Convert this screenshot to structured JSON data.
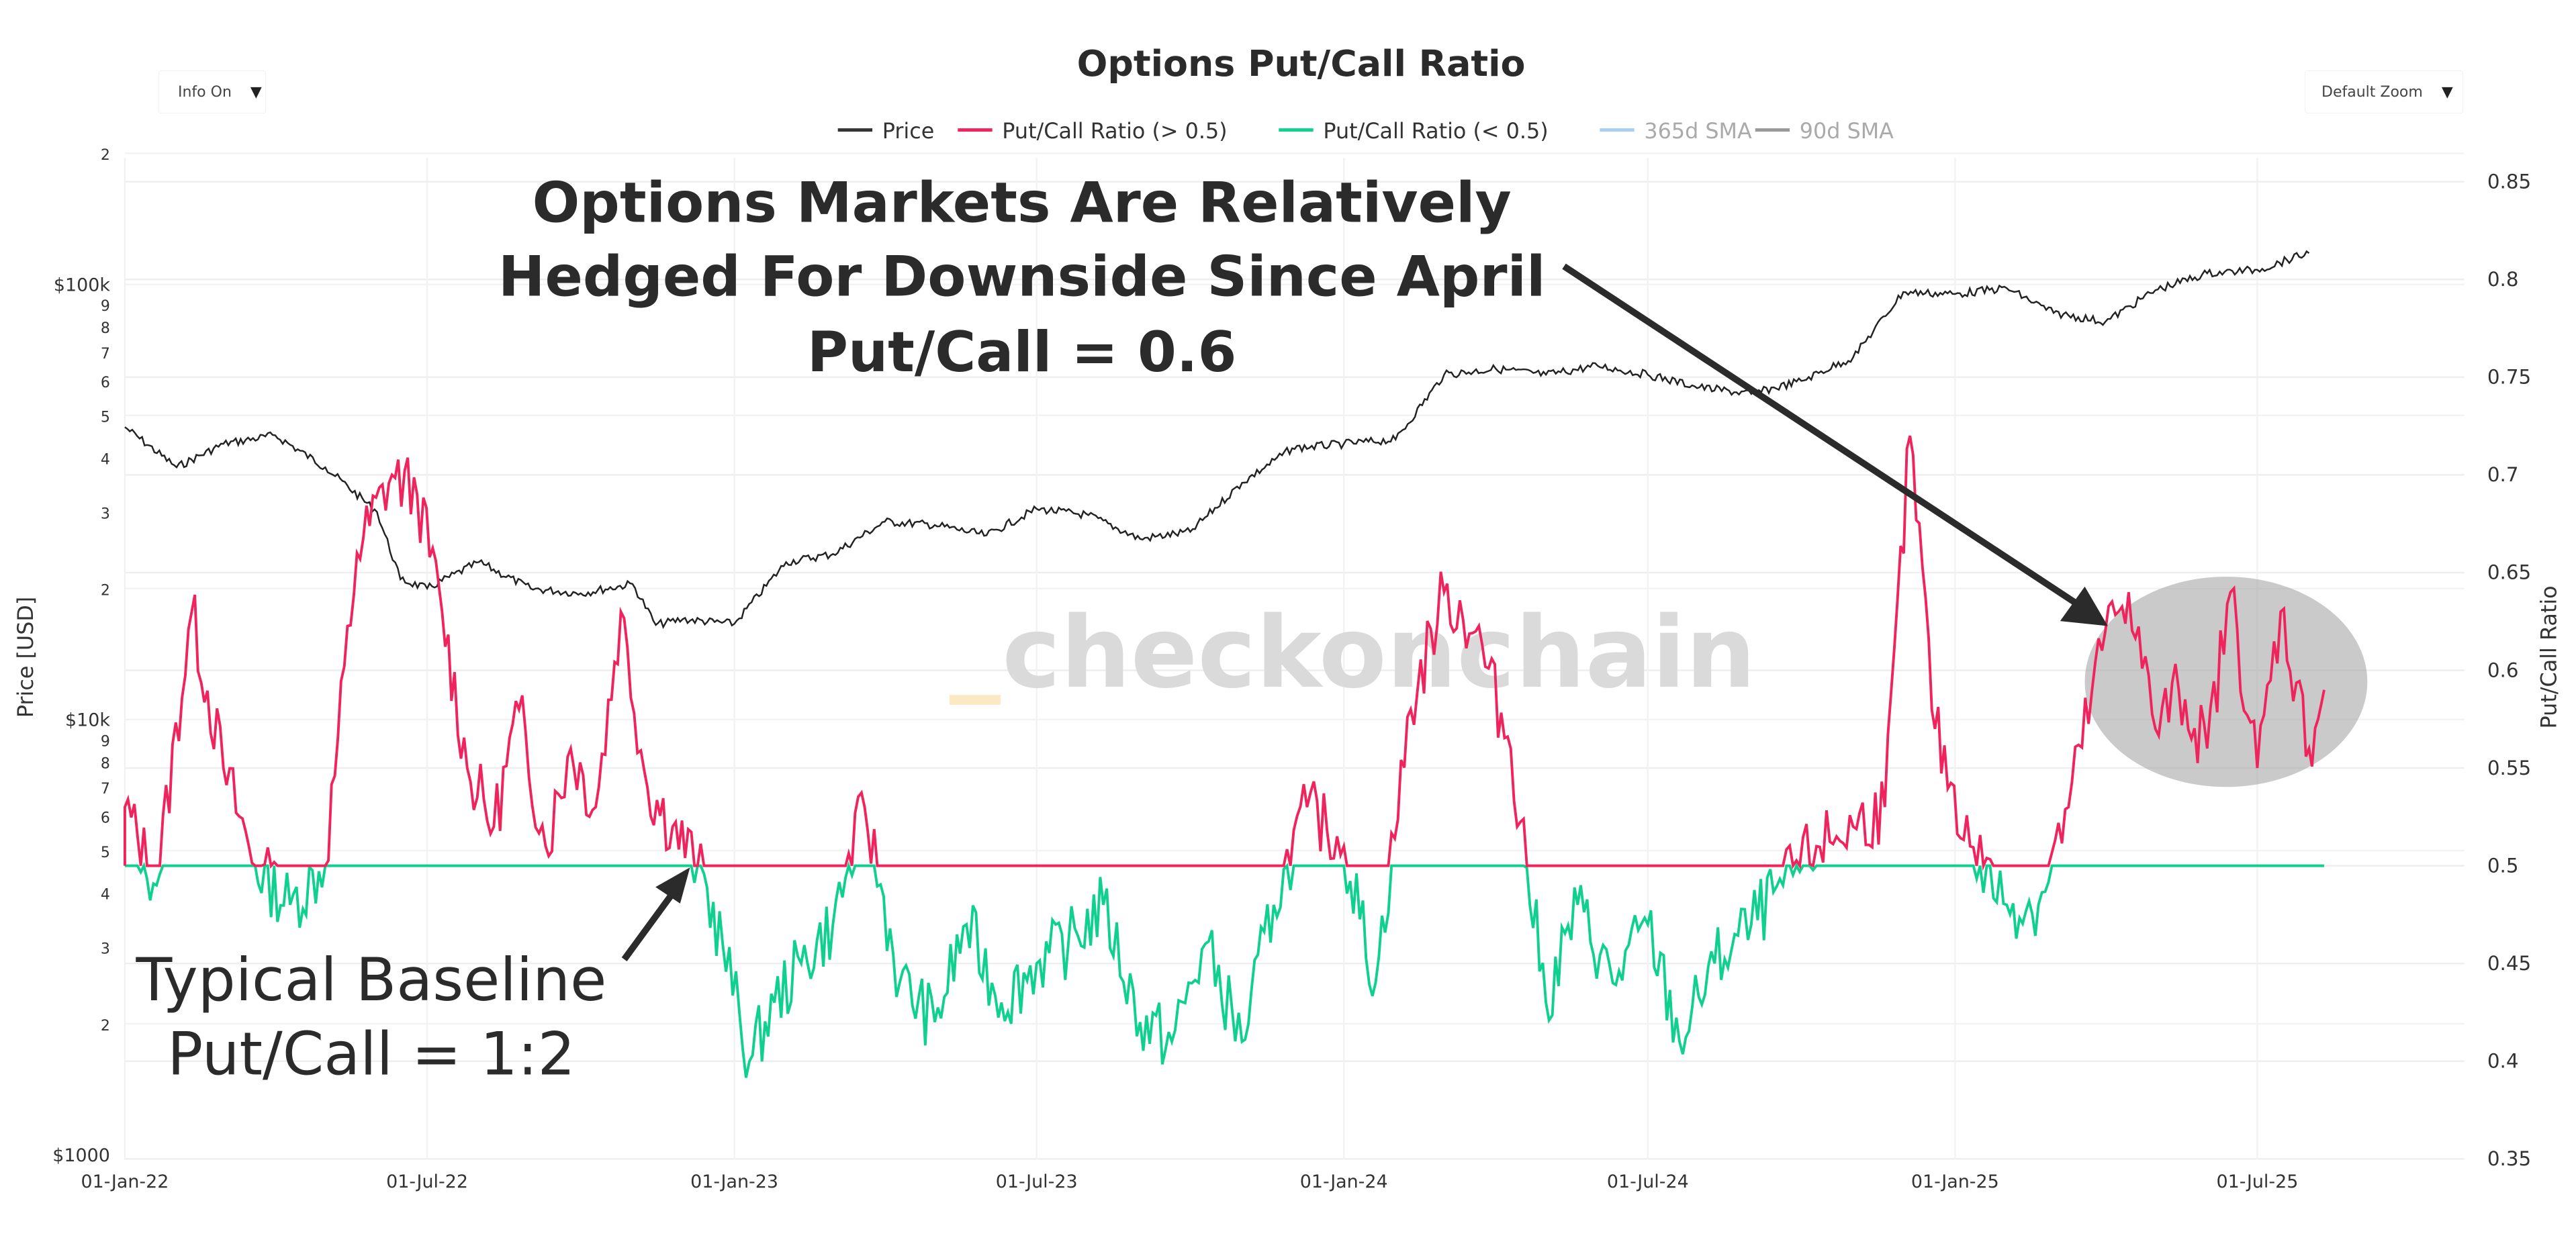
{
  "title": "Options Put/Call Ratio",
  "controls": {
    "info_dropdown": {
      "label": "Info On",
      "caret": "▼"
    },
    "zoom_dropdown": {
      "label": "Default Zoom",
      "caret": "▼"
    }
  },
  "legend": [
    {
      "label": "Price",
      "color": "#333333",
      "dimmed": false
    },
    {
      "label": "Put/Call Ratio (> 0.5)",
      "color": "#f0245c",
      "dimmed": false
    },
    {
      "label": "Put/Call Ratio (< 0.5)",
      "color": "#10d08f",
      "dimmed": false
    },
    {
      "label": "365d SMA",
      "color": "#a8cff2",
      "dimmed": true
    },
    {
      "label": "90d SMA",
      "color": "#999999",
      "dimmed": true
    }
  ],
  "annotations": {
    "headline_lines": [
      "Options Markets Are Relatively",
      "Hedged For Downside Since April",
      "Put/Call = 0.6"
    ],
    "baseline_lines": [
      "Typical Baseline",
      "Put/Call = 1:2"
    ]
  },
  "watermark": "checkonchain",
  "colors": {
    "price": "#222222",
    "ratio_high": "#f0245c",
    "ratio_low": "#10d08f",
    "highlight_ellipse": "#a6a6a6",
    "arrow": "#2b2b2b",
    "grid": "#eeeeee"
  },
  "chart_data": {
    "type": "line",
    "title": "Options Put/Call Ratio",
    "xlabel": "",
    "ylabel_left": "Price [USD]",
    "ylabel_right": "Put/Call Ratio",
    "x_tick_labels": [
      "01-Jan-22",
      "01-Jul-22",
      "01-Jan-23",
      "01-Jul-23",
      "01-Jan-24",
      "01-Jul-24",
      "01-Jan-25",
      "01-Jul-25"
    ],
    "y_left_scale": "log",
    "y_left_ticks": [
      {
        "value": 1000,
        "label": "$1000"
      },
      {
        "value": 2000,
        "label": "2"
      },
      {
        "value": 3000,
        "label": "3"
      },
      {
        "value": 4000,
        "label": "4"
      },
      {
        "value": 5000,
        "label": "5"
      },
      {
        "value": 6000,
        "label": "6"
      },
      {
        "value": 7000,
        "label": "7"
      },
      {
        "value": 8000,
        "label": "8"
      },
      {
        "value": 9000,
        "label": "9"
      },
      {
        "value": 10000,
        "label": "$10k"
      },
      {
        "value": 20000,
        "label": "2"
      },
      {
        "value": 30000,
        "label": "3"
      },
      {
        "value": 40000,
        "label": "4"
      },
      {
        "value": 50000,
        "label": "5"
      },
      {
        "value": 60000,
        "label": "6"
      },
      {
        "value": 70000,
        "label": "7"
      },
      {
        "value": 80000,
        "label": "8"
      },
      {
        "value": 90000,
        "label": "9"
      },
      {
        "value": 100000,
        "label": "$100k"
      },
      {
        "value": 200000,
        "label": "2"
      }
    ],
    "y_left_range": [
      1000,
      200000
    ],
    "y_right_ticks": [
      0.35,
      0.4,
      0.45,
      0.5,
      0.55,
      0.6,
      0.65,
      0.7,
      0.75,
      0.8,
      0.85
    ],
    "y_right_range": [
      0.35,
      0.85
    ],
    "grid": true,
    "legend_position": "top-center",
    "series": [
      {
        "name": "Price",
        "axis": "left",
        "x": [
          "2022-01-01",
          "2022-02-01",
          "2022-03-01",
          "2022-04-01",
          "2022-05-01",
          "2022-06-01",
          "2022-06-15",
          "2022-07-01",
          "2022-08-01",
          "2022-09-01",
          "2022-10-01",
          "2022-11-01",
          "2022-11-15",
          "2022-12-01",
          "2023-01-01",
          "2023-02-01",
          "2023-03-01",
          "2023-04-01",
          "2023-05-01",
          "2023-06-01",
          "2023-07-01",
          "2023-08-01",
          "2023-09-01",
          "2023-10-01",
          "2023-11-01",
          "2023-12-01",
          "2024-01-01",
          "2024-02-01",
          "2024-03-01",
          "2024-04-01",
          "2024-05-01",
          "2024-06-01",
          "2024-07-01",
          "2024-08-01",
          "2024-09-01",
          "2024-10-01",
          "2024-11-01",
          "2024-12-01",
          "2025-01-01",
          "2025-02-01",
          "2025-03-01",
          "2025-04-01",
          "2025-05-01",
          "2025-06-01",
          "2025-07-01",
          "2025-08-01"
        ],
        "values": [
          47000,
          38000,
          43000,
          45000,
          38000,
          30000,
          21000,
          20000,
          23000,
          20000,
          19500,
          20500,
          16500,
          17000,
          16600,
          23000,
          24000,
          28500,
          28000,
          26500,
          30500,
          29500,
          26000,
          27000,
          35000,
          42000,
          43000,
          44000,
          62000,
          64000,
          62000,
          65000,
          62000,
          58000,
          56000,
          60000,
          68000,
          96000,
          95000,
          98000,
          86000,
          82000,
          97000,
          106000,
          108000,
          118000
        ],
        "color": "#222222"
      },
      {
        "name": "Put/Call Ratio",
        "axis": "right",
        "note": "Colored pink where > 0.5, green where < 0.5",
        "x": [
          "2022-01-01",
          "2022-01-20",
          "2022-02-10",
          "2022-03-01",
          "2022-03-20",
          "2022-04-10",
          "2022-05-01",
          "2022-05-20",
          "2022-06-10",
          "2022-06-25",
          "2022-07-10",
          "2022-07-25",
          "2022-08-10",
          "2022-08-25",
          "2022-09-10",
          "2022-09-25",
          "2022-10-10",
          "2022-10-25",
          "2022-11-10",
          "2022-11-25",
          "2022-12-10",
          "2022-12-25",
          "2023-01-10",
          "2023-01-25",
          "2023-02-10",
          "2023-03-01",
          "2023-03-20",
          "2023-04-10",
          "2023-05-01",
          "2023-05-20",
          "2023-06-10",
          "2023-07-01",
          "2023-07-20",
          "2023-08-10",
          "2023-09-01",
          "2023-09-20",
          "2023-10-10",
          "2023-11-01",
          "2023-11-20",
          "2023-12-10",
          "2024-01-01",
          "2024-01-20",
          "2024-02-10",
          "2024-03-01",
          "2024-03-20",
          "2024-04-10",
          "2024-05-01",
          "2024-05-20",
          "2024-06-10",
          "2024-07-01",
          "2024-07-20",
          "2024-08-10",
          "2024-09-01",
          "2024-09-20",
          "2024-10-10",
          "2024-11-01",
          "2024-11-20",
          "2024-12-05",
          "2024-12-20",
          "2025-01-10",
          "2025-02-01",
          "2025-02-20",
          "2025-03-10",
          "2025-04-01",
          "2025-04-15",
          "2025-05-01",
          "2025-05-15",
          "2025-06-01",
          "2025-06-15",
          "2025-07-01",
          "2025-07-15",
          "2025-08-01",
          "2025-08-10"
        ],
        "values": [
          0.53,
          0.49,
          0.63,
          0.55,
          0.5,
          0.48,
          0.5,
          0.66,
          0.7,
          0.69,
          0.63,
          0.55,
          0.52,
          0.58,
          0.51,
          0.56,
          0.53,
          0.63,
          0.54,
          0.52,
          0.5,
          0.46,
          0.4,
          0.43,
          0.45,
          0.47,
          0.53,
          0.44,
          0.42,
          0.47,
          0.43,
          0.45,
          0.46,
          0.48,
          0.42,
          0.41,
          0.46,
          0.41,
          0.48,
          0.53,
          0.51,
          0.44,
          0.58,
          0.64,
          0.62,
          0.56,
          0.43,
          0.48,
          0.44,
          0.47,
          0.41,
          0.45,
          0.47,
          0.49,
          0.51,
          0.52,
          0.53,
          0.72,
          0.57,
          0.51,
          0.48,
          0.48,
          0.53,
          0.62,
          0.64,
          0.57,
          0.59,
          0.56,
          0.64,
          0.55,
          0.63,
          0.56,
          0.59
        ],
        "baseline": 0.5
      }
    ],
    "annotations": [
      {
        "text": "Options Markets Are Relatively Hedged For Downside Since April\nPut/Call = 0.6",
        "target": "2025-04 to 2025-08 region, ratio ~0.55-0.65"
      },
      {
        "text": "Typical Baseline\nPut/Call = 1:2",
        "target": "ratio = 0.5 baseline, ~late 2022"
      }
    ]
  }
}
